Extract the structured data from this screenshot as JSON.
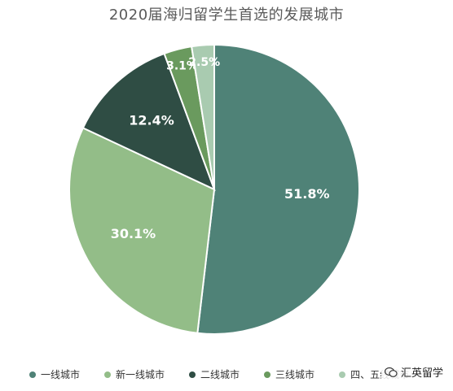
{
  "chart_data": {
    "type": "pie",
    "title": "2020届海归留学生首选的发展城市",
    "categories": [
      "一线城市",
      "新一线城市",
      "二线城市",
      "三线城市",
      "四、五线城市"
    ],
    "values": [
      51.8,
      30.1,
      12.4,
      3.1,
      2.5
    ],
    "value_labels": [
      "51.8%",
      "30.1%",
      "12.4%",
      "3.1%",
      "2.5%"
    ],
    "colors": [
      "#4f8277",
      "#93bd88",
      "#2f4d44",
      "#6a9a5e",
      "#a9cbb0"
    ],
    "legend_position": "bottom"
  },
  "watermark": {
    "text": "汇英留学",
    "icon": "wechat-icon"
  }
}
